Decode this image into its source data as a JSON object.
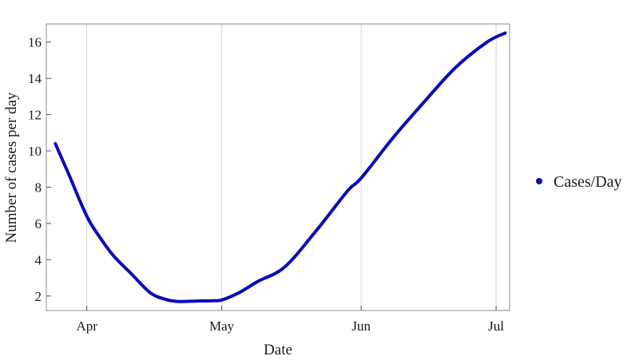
{
  "chart_data": {
    "type": "line",
    "xlabel": "Date",
    "ylabel": "Number of cases per day",
    "x_tick_labels": [
      "Apr",
      "May",
      "Jun",
      "Jul"
    ],
    "x_ticks": [
      "2020-04-01",
      "2020-05-01",
      "2020-06-01",
      "2020-07-01"
    ],
    "xlim": [
      "2020-03-23",
      "2020-07-04"
    ],
    "ylim": [
      1.2,
      17.0
    ],
    "y_ticks": [
      2,
      4,
      6,
      8,
      10,
      12,
      14,
      16
    ],
    "grid": "vertical at x ticks",
    "legend_position": "right",
    "series": [
      {
        "name": "Cases/Day",
        "color": "#0a0aba",
        "x": [
          "2020-03-25",
          "2020-03-28",
          "2020-04-01",
          "2020-04-04",
          "2020-04-07",
          "2020-04-11",
          "2020-04-15",
          "2020-04-18",
          "2020-04-21",
          "2020-04-25",
          "2020-04-29",
          "2020-05-01",
          "2020-05-05",
          "2020-05-09",
          "2020-05-15",
          "2020-05-22",
          "2020-05-29",
          "2020-06-01",
          "2020-06-08",
          "2020-06-15",
          "2020-06-22",
          "2020-06-29",
          "2020-07-03"
        ],
        "y": [
          10.4,
          8.7,
          6.4,
          5.2,
          4.2,
          3.2,
          2.2,
          1.85,
          1.7,
          1.72,
          1.74,
          1.78,
          2.2,
          2.8,
          3.6,
          5.6,
          7.8,
          8.5,
          10.7,
          12.7,
          14.6,
          16.0,
          16.5
        ]
      }
    ]
  }
}
